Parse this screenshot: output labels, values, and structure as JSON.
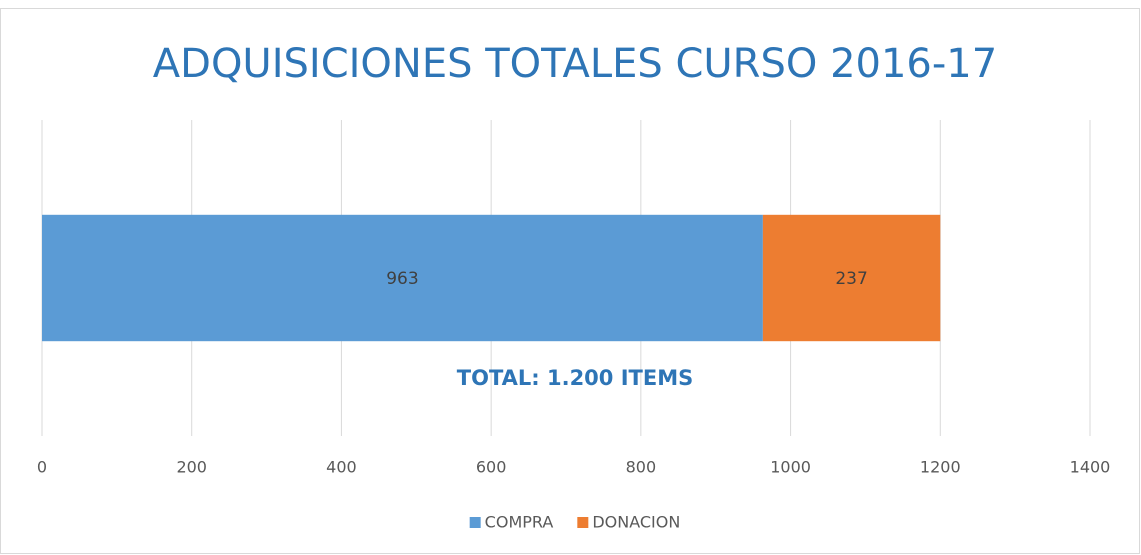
{
  "chart_data": {
    "type": "bar",
    "orientation": "horizontal",
    "stacked": true,
    "title": "ADQUISICIONES TOTALES CURSO 2016-17",
    "annotation": "TOTAL: 1.200 ITEMS",
    "categories": [
      null
    ],
    "series": [
      {
        "name": "COMPRA",
        "color": "#5b9bd5",
        "values": [
          963
        ]
      },
      {
        "name": "DONACION",
        "color": "#ed7d31",
        "values": [
          237
        ]
      }
    ],
    "xlim": [
      0,
      1400
    ],
    "xticks": [
      0,
      200,
      400,
      600,
      800,
      1000,
      1200,
      1400
    ],
    "grid": true,
    "legend": "bottom"
  }
}
